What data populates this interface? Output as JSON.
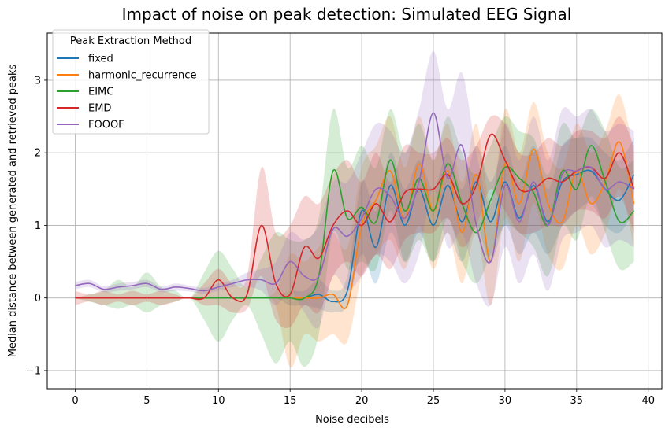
{
  "chart_data": {
    "type": "line",
    "title": "Impact of noise on peak detection: Simulated EEG Signal",
    "xlabel": "Noise decibels",
    "ylabel": "Median distance between generated and retrieved peaks",
    "xlim": [
      -1.95,
      40.95
    ],
    "ylim": [
      -1.25,
      3.65
    ],
    "xticks": [
      0,
      5,
      10,
      15,
      20,
      25,
      30,
      35,
      40
    ],
    "yticks": [
      -1,
      0,
      1,
      2,
      3
    ],
    "grid": true,
    "legend": {
      "title": "Peak Extraction Method",
      "position": "top-left"
    },
    "series": [
      {
        "name": "fixed",
        "color": "#1f77b4",
        "x": [
          0,
          1,
          2,
          3,
          4,
          5,
          6,
          7,
          8,
          9,
          10,
          11,
          12,
          13,
          14,
          15,
          16,
          17,
          18,
          19,
          20,
          21,
          22,
          23,
          24,
          25,
          26,
          27,
          28,
          29,
          30,
          31,
          32,
          33,
          34,
          35,
          36,
          37,
          38,
          39
        ],
        "y": [
          0,
          0,
          0,
          0,
          0,
          0,
          0,
          0,
          0,
          0,
          0,
          0,
          0,
          0,
          0,
          0,
          0,
          0.05,
          -0.05,
          0.1,
          1.2,
          0.7,
          1.55,
          1.0,
          1.5,
          1.0,
          1.55,
          1.05,
          1.6,
          1.05,
          1.6,
          1.1,
          1.55,
          1.05,
          1.6,
          1.7,
          1.75,
          1.5,
          1.35,
          1.7
        ],
        "lower": [
          0,
          0,
          0,
          0,
          0,
          0,
          0,
          0,
          0,
          0,
          0,
          0,
          0,
          0,
          0,
          -0.1,
          -0.1,
          -0.15,
          -0.2,
          -0.1,
          0.6,
          0.2,
          0.9,
          0.5,
          0.9,
          0.5,
          0.9,
          0.5,
          1.0,
          0.5,
          1.0,
          0.6,
          0.9,
          0.6,
          1.0,
          1.2,
          1.3,
          1.0,
          0.9,
          1.2
        ],
        "upper": [
          0,
          0,
          0,
          0,
          0,
          0,
          0,
          0,
          0,
          0,
          0,
          0,
          0,
          0,
          0,
          0.1,
          0.1,
          0.25,
          0.1,
          0.3,
          1.6,
          1.2,
          2.0,
          1.5,
          1.9,
          1.5,
          2.0,
          1.5,
          2.1,
          1.6,
          2.1,
          1.6,
          2.1,
          1.5,
          2.1,
          2.2,
          2.2,
          2.0,
          1.9,
          2.2
        ]
      },
      {
        "name": "harmonic_recurrence",
        "color": "#ff7f0e",
        "x": [
          0,
          1,
          2,
          3,
          4,
          5,
          6,
          7,
          8,
          9,
          10,
          11,
          12,
          13,
          14,
          15,
          16,
          17,
          18,
          19,
          20,
          21,
          22,
          23,
          24,
          25,
          26,
          27,
          28,
          29,
          30,
          31,
          32,
          33,
          34,
          35,
          36,
          37,
          38,
          39
        ],
        "y": [
          0,
          0,
          0,
          0,
          0,
          0,
          0,
          0,
          0,
          0,
          0,
          0,
          0,
          0,
          0,
          0,
          0,
          0,
          0.05,
          -0.1,
          1.0,
          1.35,
          1.75,
          1.1,
          1.85,
          1.2,
          1.75,
          0.9,
          1.7,
          0.5,
          1.85,
          1.3,
          2.05,
          1.3,
          1.05,
          1.75,
          1.3,
          1.6,
          2.15,
          1.3
        ],
        "lower": [
          0,
          0,
          0,
          0,
          0,
          0,
          0,
          0,
          0,
          0,
          0,
          0,
          0,
          0,
          -0.1,
          -0.95,
          -0.5,
          -0.6,
          -0.5,
          -0.6,
          0.3,
          0.6,
          0.8,
          0.4,
          1.0,
          0.4,
          0.9,
          0.2,
          0.9,
          -0.1,
          1.1,
          0.5,
          1.3,
          0.6,
          0.4,
          1.0,
          0.6,
          0.9,
          1.5,
          0.7
        ],
        "upper": [
          0,
          0,
          0,
          0,
          0,
          0,
          0,
          0,
          0,
          0,
          0,
          0,
          0,
          0,
          0.1,
          0.6,
          0.5,
          0.7,
          0.9,
          0.7,
          1.8,
          2.1,
          2.5,
          1.8,
          2.5,
          1.9,
          2.4,
          1.6,
          2.4,
          1.3,
          2.6,
          2.0,
          2.7,
          2.0,
          1.8,
          2.4,
          2.0,
          2.3,
          2.8,
          2.0
        ]
      },
      {
        "name": "EIMC",
        "color": "#2ca02c",
        "x": [
          0,
          1,
          2,
          3,
          4,
          5,
          6,
          7,
          8,
          9,
          10,
          11,
          12,
          13,
          14,
          15,
          16,
          17,
          18,
          19,
          20,
          21,
          22,
          23,
          24,
          25,
          26,
          27,
          28,
          29,
          30,
          31,
          32,
          33,
          34,
          35,
          36,
          37,
          38,
          39
        ],
        "y": [
          0,
          0,
          0,
          0,
          0,
          0,
          0,
          0,
          0,
          0,
          0,
          0,
          0,
          0,
          0,
          0,
          0,
          0.3,
          1.75,
          1.1,
          1.25,
          1.05,
          1.9,
          1.2,
          1.65,
          1.2,
          1.85,
          1.3,
          0.9,
          1.35,
          1.8,
          1.65,
          1.45,
          1.0,
          1.75,
          1.5,
          2.1,
          1.6,
          1.05,
          1.2
        ],
        "lower": [
          0,
          -0.05,
          -0.1,
          -0.15,
          -0.1,
          -0.2,
          -0.1,
          -0.05,
          0,
          -0.3,
          -0.6,
          -0.3,
          -0.1,
          -0.5,
          -0.9,
          -0.6,
          -0.95,
          -0.5,
          0.9,
          0.4,
          0.5,
          0.4,
          1.2,
          0.5,
          0.8,
          0.5,
          1.1,
          0.5,
          0.2,
          0.6,
          1.0,
          0.9,
          0.7,
          0.3,
          1.0,
          0.8,
          1.4,
          0.9,
          0.4,
          0.5
        ],
        "upper": [
          0,
          0.05,
          0.1,
          0.25,
          0.15,
          0.35,
          0.15,
          0.1,
          0,
          0.35,
          0.65,
          0.4,
          0.15,
          0.55,
          0.9,
          0.8,
          0.8,
          1.1,
          2.6,
          1.8,
          2.1,
          1.8,
          2.6,
          2.0,
          2.4,
          1.9,
          2.5,
          2.0,
          1.7,
          2.1,
          2.5,
          2.3,
          2.2,
          1.7,
          2.4,
          2.2,
          2.6,
          2.3,
          1.8,
          1.9
        ]
      },
      {
        "name": "EMD",
        "color": "#d62728",
        "x": [
          0,
          1,
          2,
          3,
          4,
          5,
          6,
          7,
          8,
          9,
          10,
          11,
          12,
          13,
          14,
          15,
          16,
          17,
          18,
          19,
          20,
          21,
          22,
          23,
          24,
          25,
          26,
          27,
          28,
          29,
          30,
          31,
          32,
          33,
          34,
          35,
          36,
          37,
          38,
          39
        ],
        "y": [
          0,
          0,
          0,
          0,
          0,
          0,
          0,
          0,
          0,
          0,
          0.25,
          0,
          0.05,
          1.0,
          0.2,
          0.05,
          0.7,
          0.55,
          1.0,
          1.2,
          1.0,
          1.3,
          1.05,
          1.45,
          1.5,
          1.5,
          1.7,
          1.3,
          1.55,
          2.25,
          1.9,
          1.5,
          1.5,
          1.65,
          1.6,
          1.75,
          1.8,
          1.65,
          2.0,
          1.5
        ],
        "lower": [
          -0.1,
          -0.05,
          -0.1,
          -0.05,
          -0.1,
          -0.05,
          -0.1,
          -0.05,
          0,
          -0.1,
          -0.1,
          -0.2,
          -0.15,
          0.3,
          -0.3,
          -0.4,
          -0.1,
          -0.2,
          0.3,
          0.5,
          0.3,
          0.6,
          0.4,
          0.8,
          0.9,
          0.9,
          1.1,
          0.7,
          1.0,
          1.5,
          1.2,
          0.9,
          0.9,
          1.0,
          1.0,
          1.2,
          1.2,
          1.1,
          1.4,
          0.9
        ],
        "upper": [
          0.1,
          0.05,
          0.1,
          0.05,
          0.1,
          0.05,
          0.1,
          0.05,
          0,
          0.2,
          0.4,
          0.2,
          0.3,
          1.8,
          0.9,
          1.0,
          1.4,
          1.3,
          1.7,
          1.9,
          1.6,
          2.0,
          1.6,
          2.1,
          2.0,
          2.0,
          2.2,
          1.9,
          2.1,
          2.5,
          2.4,
          2.0,
          2.0,
          2.2,
          2.1,
          2.3,
          2.3,
          2.2,
          2.5,
          2.1
        ]
      },
      {
        "name": "FOOOF",
        "color": "#9467bd",
        "x": [
          0,
          1,
          2,
          3,
          4,
          5,
          6,
          7,
          8,
          9,
          10,
          11,
          12,
          13,
          14,
          15,
          16,
          17,
          18,
          19,
          20,
          21,
          22,
          23,
          24,
          25,
          26,
          27,
          28,
          29,
          30,
          31,
          32,
          33,
          34,
          35,
          36,
          37,
          38,
          39
        ],
        "y": [
          0.17,
          0.2,
          0.12,
          0.15,
          0.17,
          0.2,
          0.12,
          0.15,
          0.13,
          0.1,
          0.15,
          0.2,
          0.25,
          0.25,
          0.2,
          0.5,
          0.3,
          0.3,
          0.95,
          0.85,
          1.1,
          1.5,
          1.4,
          1.1,
          1.6,
          2.55,
          1.65,
          2.1,
          1.0,
          0.5,
          1.55,
          1.05,
          1.6,
          1.0,
          1.7,
          1.75,
          1.8,
          1.5,
          1.6,
          1.5
        ],
        "lower": [
          0.12,
          0.15,
          0.08,
          0.1,
          0.12,
          0.15,
          0.08,
          0.1,
          0.09,
          0.06,
          0.1,
          0.15,
          0.15,
          0.1,
          -0.1,
          0.1,
          -0.2,
          -0.4,
          0.3,
          0.1,
          0.3,
          0.6,
          0.5,
          0.2,
          0.6,
          1.5,
          0.7,
          0.9,
          0.2,
          -0.1,
          0.7,
          0.2,
          0.6,
          0.1,
          0.8,
          0.9,
          1.0,
          0.7,
          0.8,
          0.7
        ],
        "upper": [
          0.22,
          0.25,
          0.16,
          0.2,
          0.22,
          0.25,
          0.16,
          0.2,
          0.17,
          0.14,
          0.2,
          0.25,
          0.35,
          0.4,
          0.5,
          0.9,
          0.8,
          1.0,
          1.6,
          1.6,
          2.0,
          2.4,
          2.3,
          2.0,
          2.6,
          3.4,
          2.6,
          3.1,
          2.0,
          1.3,
          2.4,
          1.9,
          2.5,
          1.9,
          2.6,
          2.5,
          2.6,
          2.3,
          2.4,
          2.3
        ]
      }
    ]
  }
}
